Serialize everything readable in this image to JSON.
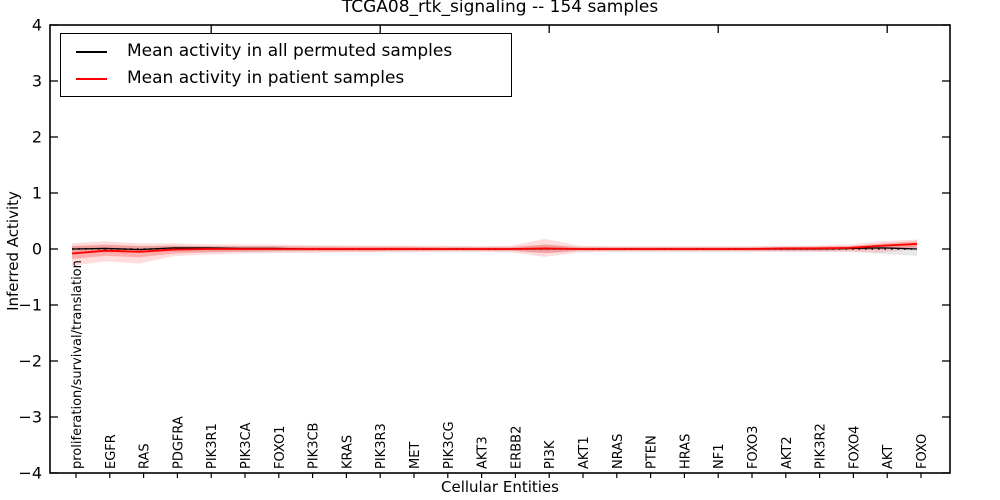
{
  "chart_data": {
    "type": "line",
    "title": "TCGA08_rtk_signaling -- 154 samples",
    "xlabel": "Cellular Entities",
    "ylabel": "Inferred Activity",
    "ylim": [
      -4,
      4
    ],
    "yticks": [
      4,
      3,
      2,
      1,
      0,
      -1,
      -2,
      -3,
      -4
    ],
    "grid": false,
    "legend_position": "upper left",
    "colors": {
      "permuted_line": "#000000",
      "patient_line": "#ff0000",
      "patient_band": "#ff4444",
      "permuted_band": "#808080",
      "frame": "#000000"
    },
    "categories": [
      "proliferation/survival/translation",
      "EGFR",
      "RAS",
      "PDGFRA",
      "PIK3R1",
      "PIK3CA",
      "FOXO1",
      "PIK3CB",
      "KRAS",
      "PIK3R3",
      "MET",
      "PIK3CG",
      "AKT3",
      "ERBB2",
      "PI3K",
      "AKT1",
      "NRAS",
      "PTEN",
      "HRAS",
      "NF1",
      "FOXO3",
      "AKT2",
      "PIK3R2",
      "FOXO4",
      "AKT",
      "FOXO"
    ],
    "legend": [
      {
        "label": "Mean activity in all permuted samples",
        "color": "#000000"
      },
      {
        "label": "Mean activity in patient samples",
        "color": "#ff0000"
      }
    ],
    "zero_reference": {
      "value": 0,
      "style": "dotted",
      "color": "#000000"
    },
    "series": [
      {
        "name": "Mean activity in all permuted samples",
        "color": "#000000",
        "style": "solid",
        "values": [
          0.0,
          0.01,
          -0.01,
          0.02,
          0.02,
          0.01,
          0.01,
          0.0,
          0.0,
          0.0,
          0.0,
          0.0,
          0.0,
          0.0,
          0.0,
          0.0,
          0.0,
          0.0,
          0.0,
          0.0,
          0.0,
          0.0,
          0.0,
          0.01,
          0.02,
          0.0
        ]
      },
      {
        "name": "Mean activity in patient samples",
        "color": "#ff0000",
        "style": "solid",
        "values": [
          -0.08,
          -0.03,
          -0.05,
          -0.01,
          0.0,
          0.0,
          0.0,
          0.0,
          0.0,
          0.0,
          0.0,
          0.0,
          0.0,
          0.0,
          0.01,
          0.0,
          0.0,
          0.0,
          0.0,
          0.0,
          0.0,
          0.01,
          0.01,
          0.02,
          0.06,
          0.09
        ]
      }
    ],
    "bands": [
      {
        "name": "permuted-samples-range",
        "color": "#808080",
        "opacity": 0.18,
        "upper": [
          0.06,
          0.06,
          0.06,
          0.06,
          0.05,
          0.05,
          0.05,
          0.05,
          0.04,
          0.04,
          0.04,
          0.04,
          0.04,
          0.04,
          0.08,
          0.04,
          0.04,
          0.04,
          0.04,
          0.04,
          0.04,
          0.04,
          0.05,
          0.05,
          0.07,
          0.1
        ],
        "lower": [
          -0.07,
          -0.06,
          -0.06,
          -0.05,
          -0.05,
          -0.05,
          -0.05,
          -0.04,
          -0.04,
          -0.04,
          -0.04,
          -0.04,
          -0.04,
          -0.04,
          -0.08,
          -0.04,
          -0.04,
          -0.04,
          -0.04,
          -0.04,
          -0.04,
          -0.04,
          -0.05,
          -0.05,
          -0.09,
          -0.12
        ]
      },
      {
        "name": "patient-samples-range-outer",
        "color": "#ff4444",
        "opacity": 0.18,
        "upper": [
          0.1,
          0.14,
          0.1,
          0.1,
          0.09,
          0.08,
          0.08,
          0.07,
          0.07,
          0.06,
          0.06,
          0.06,
          0.05,
          0.06,
          0.18,
          0.06,
          0.05,
          0.05,
          0.05,
          0.05,
          0.05,
          0.06,
          0.06,
          0.08,
          0.14,
          0.17
        ],
        "lower": [
          -0.3,
          -0.22,
          -0.26,
          -0.13,
          -0.1,
          -0.08,
          -0.07,
          -0.07,
          -0.06,
          -0.06,
          -0.06,
          -0.05,
          -0.05,
          -0.06,
          -0.14,
          -0.06,
          -0.05,
          -0.05,
          -0.05,
          -0.05,
          -0.05,
          -0.05,
          -0.05,
          -0.05,
          -0.06,
          0.0
        ]
      },
      {
        "name": "patient-samples-range-inner",
        "color": "#ff4444",
        "opacity": 0.32,
        "upper": [
          0.05,
          0.08,
          0.05,
          0.06,
          0.05,
          0.05,
          0.05,
          0.04,
          0.04,
          0.04,
          0.04,
          0.03,
          0.03,
          0.03,
          0.08,
          0.03,
          0.03,
          0.03,
          0.03,
          0.03,
          0.03,
          0.03,
          0.04,
          0.05,
          0.1,
          0.14
        ],
        "lower": [
          -0.18,
          -0.12,
          -0.15,
          -0.08,
          -0.06,
          -0.05,
          -0.04,
          -0.04,
          -0.04,
          -0.04,
          -0.03,
          -0.03,
          -0.03,
          -0.03,
          -0.07,
          -0.03,
          -0.03,
          -0.03,
          -0.03,
          -0.03,
          -0.03,
          -0.03,
          -0.03,
          -0.02,
          -0.01,
          0.03
        ]
      }
    ]
  }
}
